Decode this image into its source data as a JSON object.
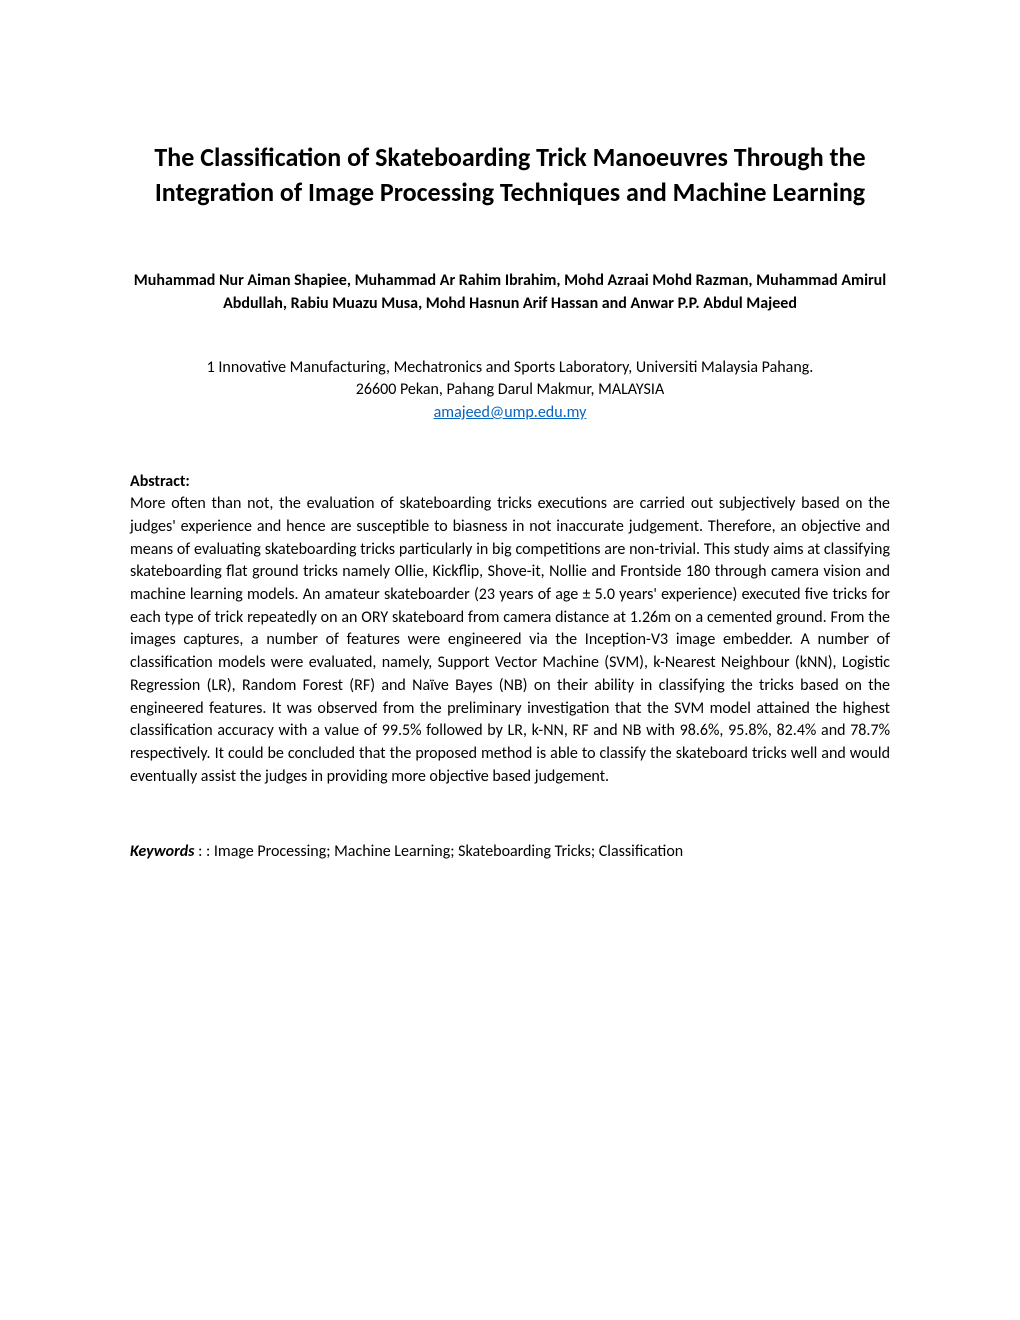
{
  "title": "The Classification of Skateboarding Trick Manoeuvres Through the Integration of Image Processing Techniques and Machine Learning",
  "authors": "Muhammad Nur Aiman Shapiee, Muhammad Ar Rahim Ibrahim, Mohd Azraai Mohd Razman, Muhammad Amirul Abdullah, Rabiu Muazu Musa, Mohd Hasnun Arif Hassan and Anwar P.P. Abdul Majeed",
  "affiliation_line1": "1 Innovative Manufacturing, Mechatronics and Sports Laboratory, Universiti Malaysia Pahang.",
  "affiliation_line2": "26600 Pekan, Pahang Darul Makmur, MALAYSIA",
  "email": "amajeed@ump.edu.my",
  "abstract_label": "Abstract:",
  "abstract_text": "More often than not, the evaluation of skateboarding tricks executions are carried out subjectively based on the judges' experience and hence are susceptible to biasness in not inaccurate judgement. Therefore, an objective and means of evaluating skateboarding tricks particularly in big competitions are non-trivial. This study aims at classifying skateboarding flat ground tricks namely Ollie, Kickflip, Shove-it, Nollie and Frontside 180 through camera vision and machine learning models. An amateur skateboarder (23 years of age ± 5.0 years' experience) executed five tricks for each type of trick repeatedly on an ORY skateboard from camera distance at 1.26m on a cemented ground. From the images captures, a number of features were engineered via the Inception-V3 image embedder. A number of classification models were evaluated, namely, Support Vector Machine (SVM), k-Nearest Neighbour (kNN), Logistic Regression (LR), Random Forest (RF) and Naïve Bayes (NB) on their ability in classifying the tricks based on the engineered features. It was observed from the preliminary investigation that the SVM model attained the highest classification accuracy with a value of 99.5% followed by LR, k-NN, RF and NB with 98.6%, 95.8%, 82.4% and 78.7% respectively. It could be concluded that the proposed method is able to classify the skateboard tricks well and would eventually assist the judges in providing more objective based judgement.",
  "keywords_label": "Keywords",
  "keywords_text": " :  : Image Processing; Machine Learning;  Skateboarding Tricks; Classification"
}
